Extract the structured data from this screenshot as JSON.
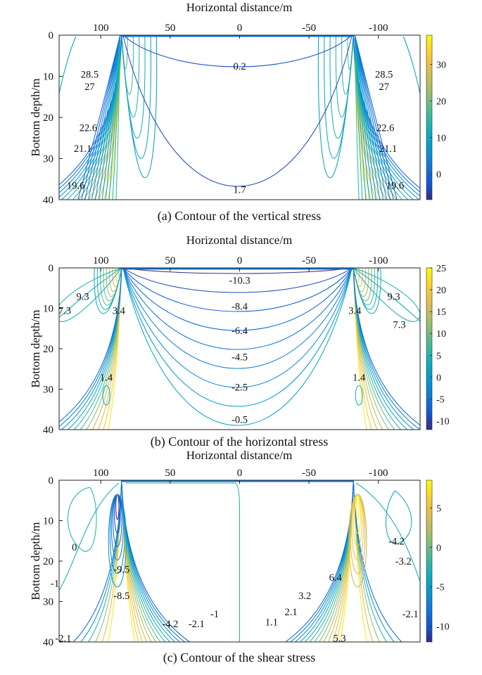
{
  "chart_data": [
    {
      "type": "contour",
      "id": "vertical",
      "caption": "(a) Contour of the vertical stress",
      "xlabel": "Horizontal distance/m",
      "ylabel": "Bottom depth/m",
      "xlim": [
        130,
        -130
      ],
      "ylim": [
        0,
        40
      ],
      "xticks": [
        100,
        50,
        0,
        -50,
        -100
      ],
      "yticks": [
        0,
        10,
        20,
        30,
        40
      ],
      "colorbar": {
        "range": [
          -7,
          38
        ],
        "ticks": [
          0,
          10,
          20,
          30
        ]
      },
      "contour_labels": [
        {
          "text": "0.2",
          "x": 0,
          "y": 7.5
        },
        {
          "text": "28.5",
          "x": 108,
          "y": 9.5
        },
        {
          "text": "27",
          "x": 108,
          "y": 12.5
        },
        {
          "text": "22.6",
          "x": 109,
          "y": 22.5
        },
        {
          "text": "21.1",
          "x": 113,
          "y": 27.5
        },
        {
          "text": "19.6",
          "x": 118,
          "y": 36.5
        },
        {
          "text": "1.7",
          "x": 0,
          "y": 37.5
        },
        {
          "text": "28.5",
          "x": -104,
          "y": 9.5
        },
        {
          "text": "27",
          "x": -104,
          "y": 12.5
        },
        {
          "text": "22.6",
          "x": -105,
          "y": 22.5
        },
        {
          "text": "21.1",
          "x": -107,
          "y": 27.5
        },
        {
          "text": "19.6",
          "x": -112,
          "y": 36.5
        }
      ]
    },
    {
      "type": "contour",
      "id": "horizontal",
      "caption": "(b) Contour of the horizontal stress",
      "xlabel": "Horizontal distance/m",
      "ylabel": "Bottom depth/m",
      "xlim": [
        130,
        -130
      ],
      "ylim": [
        0,
        40
      ],
      "xticks": [
        100,
        50,
        0,
        -50,
        -100
      ],
      "yticks": [
        0,
        10,
        20,
        30,
        40
      ],
      "colorbar": {
        "range": [
          -12,
          25
        ],
        "ticks": [
          -10,
          -5,
          0,
          5,
          10,
          15,
          20,
          25
        ]
      },
      "contour_labels": [
        {
          "text": "-10.3",
          "x": 0,
          "y": 3
        },
        {
          "text": "-8.4",
          "x": 0,
          "y": 9.5
        },
        {
          "text": "-6.4",
          "x": 0,
          "y": 15.5
        },
        {
          "text": "-4.5",
          "x": 0,
          "y": 22
        },
        {
          "text": "-2.5",
          "x": 0,
          "y": 29.5
        },
        {
          "text": "-0.5",
          "x": 0,
          "y": 37.5
        },
        {
          "text": "9.3",
          "x": 113,
          "y": 7
        },
        {
          "text": "7.3",
          "x": 126,
          "y": 10.5
        },
        {
          "text": "3.4",
          "x": 87,
          "y": 10.5
        },
        {
          "text": "1.4",
          "x": 96,
          "y": 27
        },
        {
          "text": "9.3",
          "x": -111,
          "y": 7
        },
        {
          "text": "7.3",
          "x": -115,
          "y": 14
        },
        {
          "text": "3.4",
          "x": -83,
          "y": 10.5
        },
        {
          "text": "1.4",
          "x": -86,
          "y": 27
        }
      ]
    },
    {
      "type": "contour",
      "id": "shear",
      "caption": "(c) Contour of the shear stress",
      "xlabel": "Horizontal distance/m",
      "ylabel": "Bottom depth/m",
      "xlim": [
        130,
        -130
      ],
      "ylim": [
        0,
        40
      ],
      "xticks": [
        100,
        50,
        0,
        -50,
        -100
      ],
      "yticks": [
        0,
        10,
        20,
        30,
        40
      ],
      "colorbar": {
        "range": [
          -12,
          8.5
        ],
        "ticks": [
          -10,
          -5,
          0,
          5
        ]
      },
      "contour_labels": [
        {
          "text": "0",
          "x": 119,
          "y": 16.5
        },
        {
          "text": "-9.5",
          "x": 85,
          "y": 22
        },
        {
          "text": "-1",
          "x": 133,
          "y": 25.5
        },
        {
          "text": "-8.5",
          "x": 85,
          "y": 28.5
        },
        {
          "text": "-4.2",
          "x": 50,
          "y": 35.5
        },
        {
          "text": "-2.1",
          "x": 31,
          "y": 35.5
        },
        {
          "text": "-1",
          "x": 18,
          "y": 33
        },
        {
          "text": "-2.1",
          "x": 127,
          "y": 39
        },
        {
          "text": "1.1",
          "x": -23,
          "y": 35
        },
        {
          "text": "2.1",
          "x": -37,
          "y": 32.5
        },
        {
          "text": "3.2",
          "x": -47,
          "y": 28.5
        },
        {
          "text": "6.4",
          "x": -69,
          "y": 24
        },
        {
          "text": "5.3",
          "x": -72,
          "y": 39
        },
        {
          "text": "-4.2",
          "x": -113,
          "y": 15
        },
        {
          "text": "-3.2",
          "x": -118,
          "y": 20
        },
        {
          "text": "-2.1",
          "x": -123,
          "y": 33
        }
      ]
    }
  ]
}
